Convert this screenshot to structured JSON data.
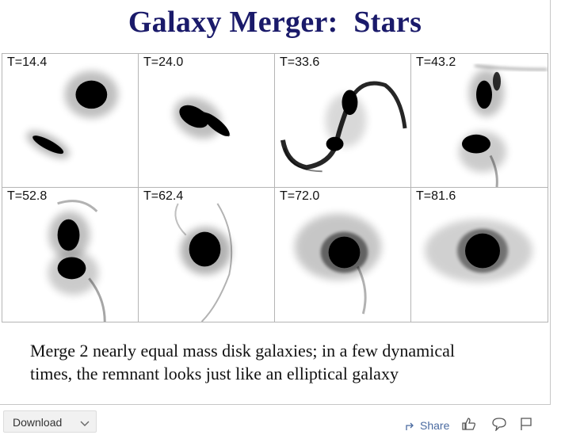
{
  "slide": {
    "title": "Galaxy Merger:  Stars",
    "panels": [
      {
        "label": "T=14.4"
      },
      {
        "label": "T=24.0"
      },
      {
        "label": "T=33.6"
      },
      {
        "label": "T=43.2"
      },
      {
        "label": "T=52.8"
      },
      {
        "label": "T=62.4"
      },
      {
        "label": "T=72.0"
      },
      {
        "label": "T=81.6"
      }
    ],
    "caption": {
      "line1": "Merge 2 nearly equal mass disk galaxies; in a few dynamical",
      "line2": "times, the remnant looks just like an elliptical galaxy"
    }
  },
  "toolbar": {
    "download_label": "Download",
    "share_label": "Share",
    "icons": [
      "chevron-down-icon",
      "share-icon",
      "like-icon",
      "comment-icon",
      "flag-icon"
    ]
  },
  "colors": {
    "title": "#1a1a6a",
    "share_link": "#4a6aa0",
    "stars": "#000000"
  }
}
